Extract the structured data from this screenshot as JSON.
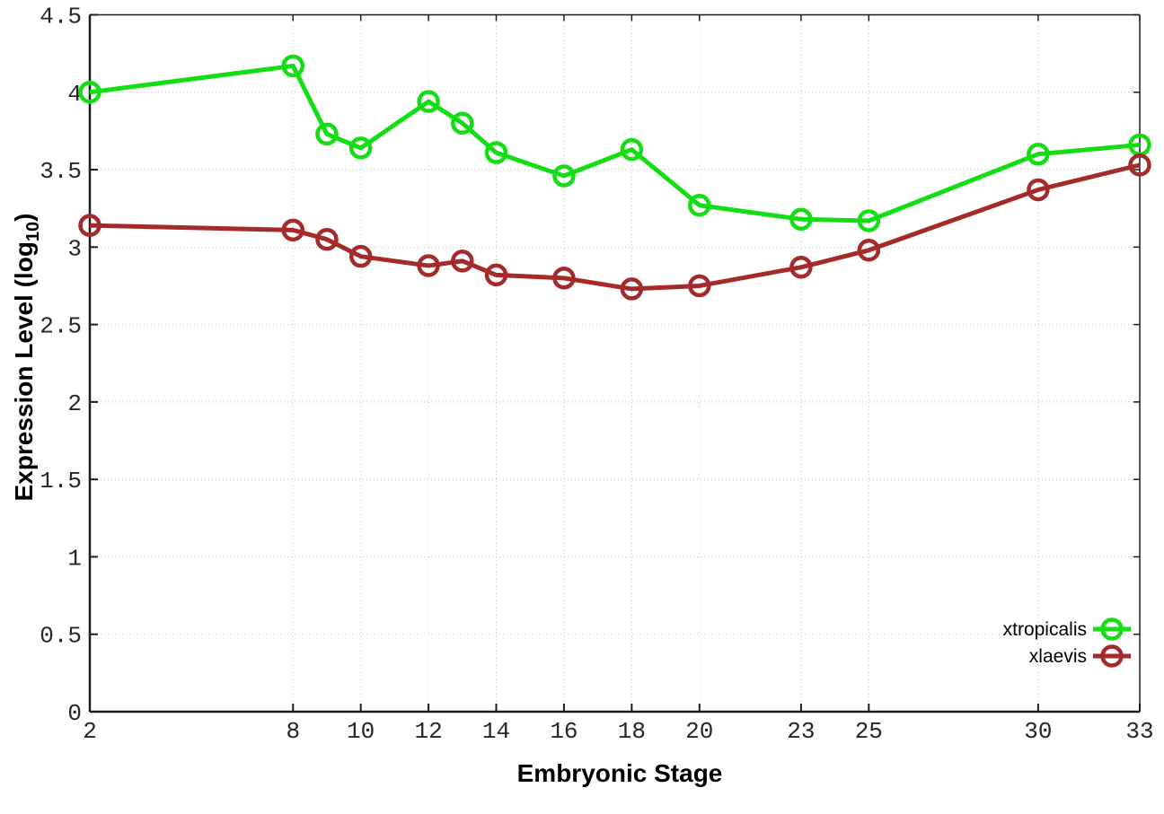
{
  "chart_data": {
    "type": "line",
    "title": "",
    "xlabel": "Embryonic Stage",
    "ylabel": "Expression Level (log10)",
    "ylabel_parts": {
      "prefix": "Expression Level (log",
      "sub": "10",
      "suffix": ")"
    },
    "xlim": [
      2,
      33
    ],
    "ylim": [
      0,
      4.5
    ],
    "xticks": [
      2,
      8,
      10,
      12,
      14,
      16,
      18,
      20,
      23,
      25,
      30,
      33
    ],
    "xtick_labels": [
      "2",
      "8",
      "10",
      "12",
      "14",
      "16",
      "18",
      "20",
      "23",
      "25",
      "30",
      "33"
    ],
    "yticks": [
      0,
      0.5,
      1,
      1.5,
      2,
      2.5,
      3,
      3.5,
      4,
      4.5
    ],
    "ytick_labels": [
      "0",
      "0.5",
      "1",
      "1.5",
      "2",
      "2.5",
      "3",
      "3.5",
      "4",
      "4.5"
    ],
    "grid": true,
    "grid_style": "dotted",
    "legend_position": "bottom-right-inside",
    "x": [
      2,
      8,
      9,
      10,
      12,
      13,
      14,
      16,
      18,
      20,
      23,
      25,
      30,
      33
    ],
    "series": [
      {
        "name": "xtropicalis",
        "color": "#14dd14",
        "marker": "open-circle",
        "values": [
          4.0,
          4.17,
          3.73,
          3.64,
          3.94,
          3.8,
          3.61,
          3.46,
          3.63,
          3.27,
          3.18,
          3.17,
          3.6,
          3.66
        ]
      },
      {
        "name": "xlaevis",
        "color": "#a52a2a",
        "marker": "open-circle",
        "values": [
          3.14,
          3.11,
          3.05,
          2.94,
          2.88,
          2.91,
          2.82,
          2.8,
          2.73,
          2.75,
          2.87,
          2.98,
          3.37,
          3.53
        ]
      }
    ],
    "colors": {
      "background": "#ffffff",
      "border": "#1c1c1c",
      "grid": "#bdbdbd",
      "tick_label": "#262626",
      "legend_text": "#000000"
    }
  }
}
